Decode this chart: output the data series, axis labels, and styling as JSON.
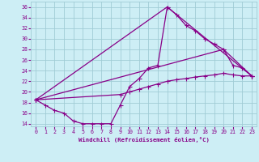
{
  "xlabel": "Windchill (Refroidissement éolien,°C)",
  "background_color": "#cdeef5",
  "grid_color": "#a0ccd5",
  "line_color": "#880088",
  "xlim": [
    -0.5,
    23.5
  ],
  "ylim": [
    13.5,
    37
  ],
  "yticks": [
    14,
    16,
    18,
    20,
    22,
    24,
    26,
    28,
    30,
    32,
    34,
    36
  ],
  "xticks": [
    0,
    1,
    2,
    3,
    4,
    5,
    6,
    7,
    8,
    9,
    10,
    11,
    12,
    13,
    14,
    15,
    16,
    17,
    18,
    19,
    20,
    21,
    22,
    23
  ],
  "line1_x": [
    0,
    1,
    2,
    3,
    4,
    5,
    6,
    7,
    8,
    9,
    10,
    11,
    12,
    13,
    14,
    15,
    16,
    17,
    18,
    19,
    20,
    21,
    22,
    23
  ],
  "line1_y": [
    18.5,
    17.5,
    16.5,
    16.0,
    14.5,
    14.0,
    14.0,
    14.0,
    14.0,
    17.5,
    21.0,
    22.5,
    24.5,
    25.0,
    36.0,
    34.5,
    32.5,
    31.5,
    30.0,
    29.0,
    28.0,
    25.0,
    24.5,
    23.0
  ],
  "line2_x": [
    0,
    9,
    10,
    11,
    12,
    13,
    14,
    15,
    16,
    17,
    18,
    19,
    20,
    21,
    22,
    23
  ],
  "line2_y": [
    18.5,
    19.5,
    20.0,
    20.5,
    21.0,
    21.5,
    22.0,
    22.3,
    22.5,
    22.8,
    23.0,
    23.2,
    23.5,
    23.2,
    23.0,
    23.0
  ],
  "line3_x": [
    0,
    14,
    23
  ],
  "line3_y": [
    18.5,
    36.0,
    23.0
  ],
  "line4_x": [
    0,
    20,
    23
  ],
  "line4_y": [
    18.5,
    28.0,
    23.0
  ]
}
